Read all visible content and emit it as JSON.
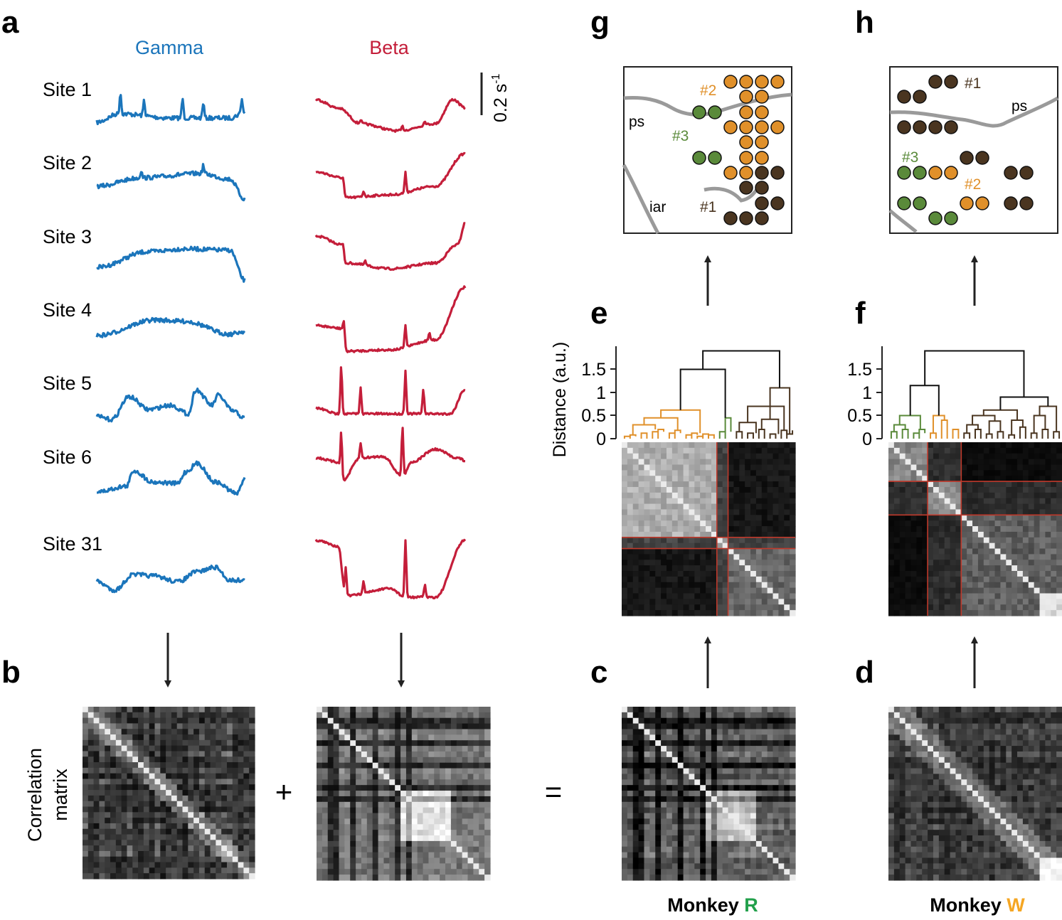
{
  "panel_labels": [
    "a",
    "b",
    "c",
    "d",
    "e",
    "f",
    "g",
    "h"
  ],
  "colors": {
    "gamma": "#1b75bb",
    "beta": "#c41e3a",
    "cluster1": "#4a3520",
    "cluster2": "#e0902a",
    "cluster3": "#5a8a3a",
    "red_line": "#c0392b",
    "sulcus": "#9a9a9a"
  },
  "panel_a": {
    "gamma_title": "Gamma",
    "beta_title": "Beta",
    "site_labels": [
      "Site 1",
      "Site 2",
      "Site 3",
      "Site 4",
      "Site 5",
      "Site 6",
      "Site 31"
    ],
    "scale_bar_label": "0.2 s",
    "scale_bar_exp": "-1"
  },
  "panel_b": {
    "ylabel_line1": "Correlation",
    "ylabel_line2": "matrix",
    "plus": "+",
    "equals": "="
  },
  "monkeys": {
    "r_prefix": "Monkey ",
    "r_letter": "R",
    "w_prefix": "Monkey ",
    "w_letter": "W",
    "r_color": "#22a04b",
    "w_color": "#f5a623"
  },
  "dendrogram": {
    "ylabel": "Distance (a.u.)",
    "ticks": [
      "1.5",
      "1",
      "0.5",
      "0"
    ]
  },
  "map_g": {
    "sulcus_labels": [
      "ps",
      "iar"
    ],
    "cluster_labels": [
      "#2",
      "#3",
      "#1"
    ]
  },
  "map_h": {
    "sulcus_labels": [
      "ps"
    ],
    "cluster_labels": [
      "#1",
      "#3",
      "#2"
    ]
  }
}
